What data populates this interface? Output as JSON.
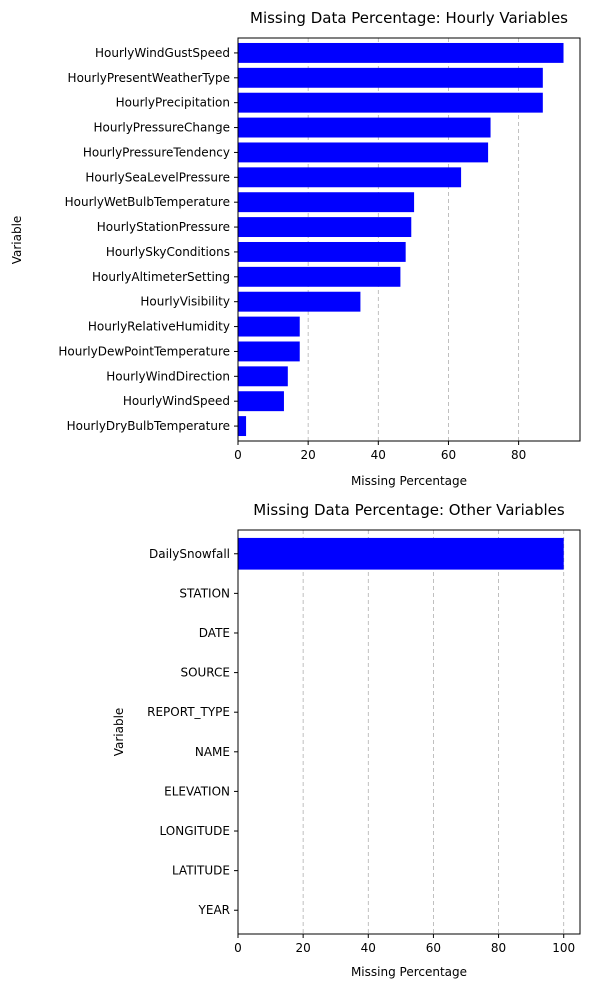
{
  "chart_data": [
    {
      "type": "bar",
      "orientation": "horizontal",
      "title": "Missing Data Percentage: Hourly Variables",
      "xlabel": "Missing Percentage",
      "ylabel": "Variable",
      "xlim": [
        0,
        97.5
      ],
      "xticks": [
        0,
        20,
        40,
        60,
        80
      ],
      "grid": "x-dashed",
      "bar_color": "#0000ff",
      "categories": [
        "HourlyWindGustSpeed",
        "HourlyPresentWeatherType",
        "HourlyPrecipitation",
        "HourlyPressureChange",
        "HourlyPressureTendency",
        "HourlySeaLevelPressure",
        "HourlyWetBulbTemperature",
        "HourlyStationPressure",
        "HourlySkyConditions",
        "HourlyAltimeterSetting",
        "HourlyVisibility",
        "HourlyRelativeHumidity",
        "HourlyDewPointTemperature",
        "HourlyWindDirection",
        "HourlyWindSpeed",
        "HourlyDryBulbTemperature"
      ],
      "values": [
        92.8,
        86.9,
        86.9,
        72.0,
        71.3,
        63.6,
        50.2,
        49.4,
        47.8,
        46.3,
        34.9,
        17.6,
        17.6,
        14.2,
        13.1,
        2.3
      ]
    },
    {
      "type": "bar",
      "orientation": "horizontal",
      "title": "Missing Data Percentage: Other Variables",
      "xlabel": "Missing Percentage",
      "ylabel": "Variable",
      "xlim": [
        0,
        105
      ],
      "xticks": [
        0,
        20,
        40,
        60,
        80,
        100
      ],
      "grid": "x-dashed",
      "bar_color": "#0000ff",
      "categories": [
        "DailySnowfall",
        "STATION",
        "DATE",
        "SOURCE",
        "REPORT_TYPE",
        "NAME",
        "ELEVATION",
        "LONGITUDE",
        "LATITUDE",
        "YEAR"
      ],
      "values": [
        100,
        0,
        0,
        0,
        0,
        0,
        0,
        0,
        0,
        0
      ]
    }
  ]
}
